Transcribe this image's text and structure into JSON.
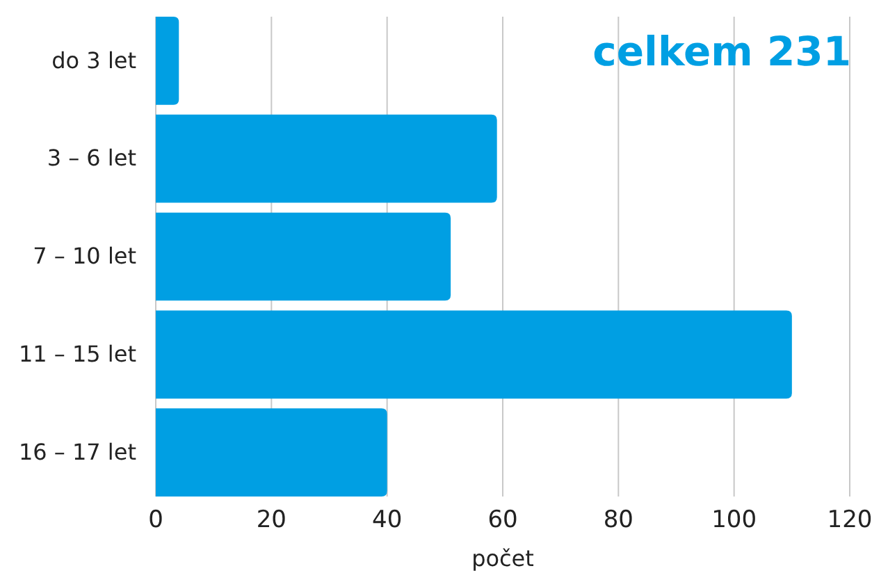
{
  "chart_data": {
    "type": "bar",
    "orientation": "horizontal",
    "xlabel": "počet",
    "categories": [
      "do 3 let",
      "3 – 6 let",
      "7 – 10 let",
      "11 – 15 let",
      "16 – 17 let"
    ],
    "values": [
      4,
      59,
      51,
      110,
      40
    ],
    "color": "#009fe3",
    "xlim": [
      0,
      120
    ],
    "xticks": [
      0,
      20,
      40,
      60,
      80,
      100,
      120
    ],
    "grid": "x",
    "annotations": [
      "celkem 231"
    ]
  }
}
